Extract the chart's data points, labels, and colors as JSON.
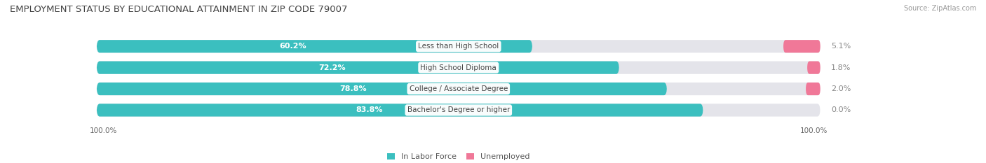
{
  "title": "EMPLOYMENT STATUS BY EDUCATIONAL ATTAINMENT IN ZIP CODE 79007",
  "source": "Source: ZipAtlas.com",
  "categories": [
    "Less than High School",
    "High School Diploma",
    "College / Associate Degree",
    "Bachelor's Degree or higher"
  ],
  "labor_force_pct": [
    60.2,
    72.2,
    78.8,
    83.8
  ],
  "unemployed_pct": [
    5.1,
    1.8,
    2.0,
    0.0
  ],
  "labor_force_color": "#3bbfbf",
  "unemployed_color": "#f07898",
  "bar_bg_color": "#e4e4ea",
  "background_color": "#ffffff",
  "axis_label_left": "100.0%",
  "axis_label_right": "100.0%",
  "bar_height": 0.6,
  "title_fontsize": 9.5,
  "label_fontsize": 8,
  "category_fontsize": 7.5,
  "legend_fontsize": 8
}
